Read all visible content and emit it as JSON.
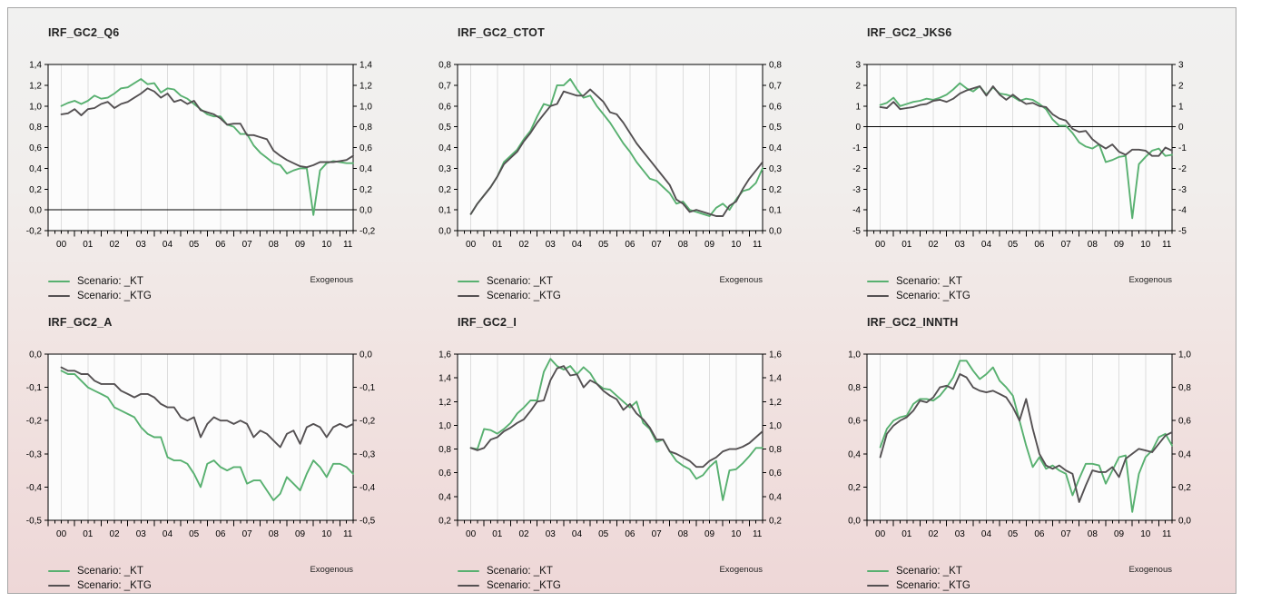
{
  "panel": {
    "border_color": "#a6a6a6",
    "gradient_top": "#f1f1f0",
    "gradient_bottom": "#eed7d7",
    "plot_background": "#fcfcfc",
    "grid_color": "#dddddd",
    "axis_color": "#000000",
    "text_color": "#000000"
  },
  "legend": {
    "exogenous_label": "Exogenous",
    "items": [
      {
        "label": "Scenario: _KT",
        "color": "#58b070"
      },
      {
        "label": "Scenario: _KTG",
        "color": "#545052"
      }
    ]
  },
  "x_labels": [
    "00",
    "01",
    "02",
    "03",
    "04",
    "05",
    "06",
    "07",
    "08",
    "09",
    "10",
    "11"
  ],
  "chart_data": [
    {
      "type": "line",
      "title": "IRF_GC2_Q6",
      "ylim": [
        -0.2,
        1.4
      ],
      "ystep": 0.2,
      "ydecimals": 1,
      "decimal_separator": ",",
      "grid": "vertical-years",
      "legend_position": "below-left",
      "annotation": "Exogenous",
      "x_tick_labels": [
        "00",
        "01",
        "02",
        "03",
        "04",
        "05",
        "06",
        "07",
        "08",
        "09",
        "10",
        "11"
      ],
      "series": [
        {
          "name": "Scenario: _KT",
          "color": "#58b070",
          "values": [
            1.0,
            1.03,
            1.05,
            1.02,
            1.05,
            1.1,
            1.07,
            1.08,
            1.12,
            1.17,
            1.18,
            1.22,
            1.26,
            1.21,
            1.22,
            1.13,
            1.17,
            1.16,
            1.1,
            1.07,
            1.02,
            0.97,
            0.92,
            0.9,
            0.9,
            0.82,
            0.8,
            0.73,
            0.73,
            0.62,
            0.55,
            0.5,
            0.45,
            0.43,
            0.35,
            0.38,
            0.4,
            0.4,
            -0.05,
            0.38,
            0.45,
            0.47,
            0.46,
            0.45,
            0.45
          ]
        },
        {
          "name": "Scenario: _KTG",
          "color": "#545052",
          "values": [
            0.92,
            0.93,
            0.97,
            0.91,
            0.97,
            0.98,
            1.02,
            1.04,
            0.98,
            1.02,
            1.04,
            1.08,
            1.12,
            1.17,
            1.14,
            1.08,
            1.12,
            1.04,
            1.06,
            1.02,
            1.05,
            0.96,
            0.94,
            0.92,
            0.88,
            0.82,
            0.83,
            0.83,
            0.72,
            0.72,
            0.7,
            0.68,
            0.57,
            0.52,
            0.48,
            0.45,
            0.42,
            0.41,
            0.43,
            0.46,
            0.46,
            0.46,
            0.47,
            0.48,
            0.52
          ]
        }
      ]
    },
    {
      "type": "line",
      "title": "IRF_GC2_CTOT",
      "ylim": [
        0.0,
        0.8
      ],
      "ystep": 0.1,
      "ydecimals": 1,
      "decimal_separator": ",",
      "grid": "vertical-years",
      "legend_position": "below-left",
      "annotation": "Exogenous",
      "x_tick_labels": [
        "00",
        "01",
        "02",
        "03",
        "04",
        "05",
        "06",
        "07",
        "08",
        "09",
        "10",
        "11"
      ],
      "series": [
        {
          "name": "Scenario: _KT",
          "color": "#58b070",
          "values": [
            0.08,
            0.13,
            0.17,
            0.21,
            0.26,
            0.33,
            0.36,
            0.39,
            0.44,
            0.48,
            0.55,
            0.61,
            0.6,
            0.7,
            0.7,
            0.73,
            0.68,
            0.64,
            0.65,
            0.6,
            0.56,
            0.52,
            0.47,
            0.42,
            0.38,
            0.33,
            0.29,
            0.25,
            0.24,
            0.21,
            0.18,
            0.13,
            0.14,
            0.1,
            0.09,
            0.08,
            0.07,
            0.11,
            0.13,
            0.1,
            0.15,
            0.19,
            0.2,
            0.23,
            0.3
          ]
        },
        {
          "name": "Scenario: _KTG",
          "color": "#545052",
          "values": [
            0.08,
            0.13,
            0.17,
            0.21,
            0.26,
            0.32,
            0.35,
            0.38,
            0.43,
            0.47,
            0.52,
            0.56,
            0.6,
            0.61,
            0.67,
            0.66,
            0.65,
            0.65,
            0.68,
            0.65,
            0.62,
            0.57,
            0.56,
            0.52,
            0.47,
            0.42,
            0.38,
            0.34,
            0.3,
            0.26,
            0.22,
            0.15,
            0.13,
            0.09,
            0.1,
            0.09,
            0.08,
            0.07,
            0.07,
            0.12,
            0.14,
            0.2,
            0.25,
            0.29,
            0.33
          ]
        }
      ]
    },
    {
      "type": "line",
      "title": "IRF_GC2_JKS6",
      "ylim": [
        -5,
        3
      ],
      "ystep": 1,
      "ydecimals": 0,
      "decimal_separator": ",",
      "grid": "vertical-years",
      "legend_position": "below-left",
      "annotation": "Exogenous",
      "x_tick_labels": [
        "00",
        "01",
        "02",
        "03",
        "04",
        "05",
        "06",
        "07",
        "08",
        "09",
        "10",
        "11"
      ],
      "series": [
        {
          "name": "Scenario: _KT",
          "color": "#58b070",
          "values": [
            1.05,
            1.15,
            1.4,
            1.0,
            1.1,
            1.2,
            1.25,
            1.35,
            1.3,
            1.4,
            1.55,
            1.8,
            2.1,
            1.85,
            1.7,
            1.95,
            1.55,
            1.9,
            1.6,
            1.55,
            1.45,
            1.25,
            1.35,
            1.3,
            1.1,
            0.85,
            0.35,
            0.05,
            0.05,
            -0.3,
            -0.75,
            -0.95,
            -1.05,
            -0.85,
            -1.7,
            -1.6,
            -1.45,
            -1.4,
            -4.4,
            -1.8,
            -1.45,
            -1.15,
            -1.05,
            -1.4,
            -1.35
          ]
        },
        {
          "name": "Scenario: _KTG",
          "color": "#545052",
          "values": [
            0.95,
            0.9,
            1.2,
            0.85,
            0.9,
            0.95,
            1.05,
            1.1,
            1.25,
            1.3,
            1.2,
            1.35,
            1.6,
            1.75,
            1.85,
            1.95,
            1.5,
            1.95,
            1.55,
            1.3,
            1.55,
            1.3,
            1.1,
            1.15,
            1.0,
            0.95,
            0.6,
            0.4,
            0.3,
            -0.1,
            -0.25,
            -0.2,
            -0.6,
            -0.85,
            -1.05,
            -0.85,
            -1.2,
            -1.35,
            -1.1,
            -1.1,
            -1.15,
            -1.4,
            -1.4,
            -1.0,
            -1.15
          ]
        }
      ]
    },
    {
      "type": "line",
      "title": "IRF_GC2_A",
      "ylim": [
        -0.5,
        0.0
      ],
      "ystep": 0.1,
      "ydecimals": 1,
      "decimal_separator": ",",
      "grid": "vertical-years",
      "legend_position": "below-left",
      "annotation": "Exogenous",
      "x_tick_labels": [
        "00",
        "01",
        "02",
        "03",
        "04",
        "05",
        "06",
        "07",
        "08",
        "09",
        "10",
        "11"
      ],
      "series": [
        {
          "name": "Scenario: _KT",
          "color": "#58b070",
          "values": [
            -0.05,
            -0.06,
            -0.06,
            -0.08,
            -0.1,
            -0.11,
            -0.12,
            -0.13,
            -0.16,
            -0.17,
            -0.18,
            -0.19,
            -0.22,
            -0.24,
            -0.25,
            -0.25,
            -0.31,
            -0.32,
            -0.32,
            -0.33,
            -0.36,
            -0.4,
            -0.33,
            -0.32,
            -0.34,
            -0.35,
            -0.34,
            -0.34,
            -0.39,
            -0.38,
            -0.38,
            -0.41,
            -0.44,
            -0.42,
            -0.37,
            -0.39,
            -0.41,
            -0.36,
            -0.32,
            -0.34,
            -0.37,
            -0.33,
            -0.33,
            -0.34,
            -0.36
          ]
        },
        {
          "name": "Scenario: _KTG",
          "color": "#545052",
          "values": [
            -0.04,
            -0.05,
            -0.05,
            -0.06,
            -0.06,
            -0.08,
            -0.09,
            -0.09,
            -0.09,
            -0.11,
            -0.12,
            -0.13,
            -0.12,
            -0.12,
            -0.13,
            -0.15,
            -0.16,
            -0.16,
            -0.19,
            -0.2,
            -0.19,
            -0.25,
            -0.21,
            -0.19,
            -0.2,
            -0.2,
            -0.21,
            -0.2,
            -0.21,
            -0.25,
            -0.23,
            -0.24,
            -0.26,
            -0.28,
            -0.24,
            -0.23,
            -0.27,
            -0.22,
            -0.21,
            -0.22,
            -0.25,
            -0.22,
            -0.21,
            -0.22,
            -0.21
          ]
        }
      ]
    },
    {
      "type": "line",
      "title": "IRF_GC2_I",
      "ylim": [
        0.2,
        1.6
      ],
      "ystep": 0.2,
      "ydecimals": 1,
      "decimal_separator": ",",
      "grid": "vertical-years",
      "legend_position": "below-left",
      "annotation": "Exogenous",
      "x_tick_labels": [
        "00",
        "01",
        "02",
        "03",
        "04",
        "05",
        "06",
        "07",
        "08",
        "09",
        "10",
        "11"
      ],
      "series": [
        {
          "name": "Scenario: _KT",
          "color": "#58b070",
          "values": [
            0.81,
            0.8,
            0.97,
            0.96,
            0.93,
            0.97,
            1.02,
            1.1,
            1.15,
            1.21,
            1.21,
            1.45,
            1.56,
            1.5,
            1.47,
            1.5,
            1.43,
            1.49,
            1.44,
            1.35,
            1.31,
            1.3,
            1.25,
            1.2,
            1.15,
            1.2,
            1.02,
            0.97,
            0.86,
            0.88,
            0.78,
            0.7,
            0.66,
            0.63,
            0.55,
            0.58,
            0.65,
            0.7,
            0.37,
            0.62,
            0.63,
            0.68,
            0.74,
            0.81,
            0.81
          ]
        },
        {
          "name": "Scenario: _KTG",
          "color": "#545052",
          "values": [
            0.81,
            0.79,
            0.81,
            0.88,
            0.9,
            0.95,
            0.98,
            1.02,
            1.05,
            1.12,
            1.2,
            1.21,
            1.38,
            1.48,
            1.5,
            1.42,
            1.43,
            1.32,
            1.38,
            1.35,
            1.29,
            1.25,
            1.22,
            1.13,
            1.18,
            1.1,
            1.05,
            0.98,
            0.88,
            0.88,
            0.78,
            0.76,
            0.73,
            0.7,
            0.65,
            0.65,
            0.7,
            0.73,
            0.78,
            0.8,
            0.8,
            0.82,
            0.85,
            0.9,
            0.95
          ]
        }
      ]
    },
    {
      "type": "line",
      "title": "IRF_GC2_INNTH",
      "ylim": [
        0.0,
        1.0
      ],
      "ystep": 0.2,
      "ydecimals": 1,
      "decimal_separator": ",",
      "grid": "vertical-years",
      "legend_position": "below-left",
      "annotation": "Exogenous",
      "x_tick_labels": [
        "00",
        "01",
        "02",
        "03",
        "04",
        "05",
        "06",
        "07",
        "08",
        "09",
        "10",
        "11"
      ],
      "series": [
        {
          "name": "Scenario: _KT",
          "color": "#58b070",
          "values": [
            0.44,
            0.55,
            0.6,
            0.62,
            0.63,
            0.7,
            0.73,
            0.73,
            0.72,
            0.75,
            0.8,
            0.86,
            0.96,
            0.96,
            0.9,
            0.85,
            0.88,
            0.92,
            0.84,
            0.8,
            0.75,
            0.6,
            0.45,
            0.32,
            0.38,
            0.31,
            0.33,
            0.3,
            0.28,
            0.15,
            0.25,
            0.34,
            0.34,
            0.33,
            0.22,
            0.3,
            0.38,
            0.39,
            0.05,
            0.28,
            0.38,
            0.42,
            0.5,
            0.52,
            0.45
          ]
        },
        {
          "name": "Scenario: _KTG",
          "color": "#545052",
          "values": [
            0.38,
            0.52,
            0.57,
            0.6,
            0.62,
            0.66,
            0.72,
            0.71,
            0.74,
            0.8,
            0.81,
            0.79,
            0.88,
            0.86,
            0.8,
            0.78,
            0.77,
            0.78,
            0.76,
            0.74,
            0.68,
            0.6,
            0.73,
            0.55,
            0.4,
            0.33,
            0.31,
            0.33,
            0.3,
            0.28,
            0.11,
            0.21,
            0.3,
            0.29,
            0.29,
            0.32,
            0.26,
            0.37,
            0.4,
            0.43,
            0.42,
            0.41,
            0.46,
            0.51,
            0.53
          ]
        }
      ]
    }
  ]
}
